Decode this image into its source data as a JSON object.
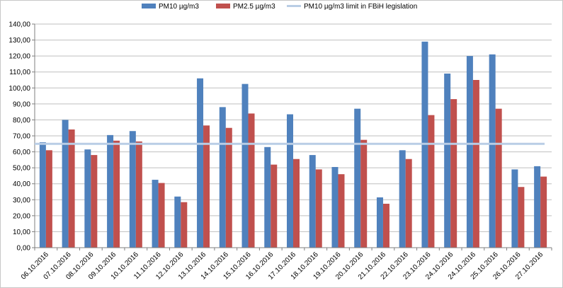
{
  "chart_data": {
    "type": "bar",
    "categories": [
      "06.10.2016",
      "07.10.2016",
      "08.10.2016",
      "09.10.2016",
      "10.10.2016",
      "11.10.2016",
      "12.10.2016",
      "13.10.2016",
      "14.10.2016",
      "15.10.2016",
      "16.10.2016",
      "17.10.2016",
      "18.10.2016",
      "19.10.2016",
      "20.10.2016",
      "21.10.2016",
      "22.10.2016",
      "23.10.2016",
      "24.10.2016",
      "24.10.2016",
      "25.10.2016",
      "26.10.2016",
      "27.10.2016"
    ],
    "series": [
      {
        "name": "PM10 µg/m3",
        "color": "#4f81bd",
        "values": [
          66,
          80,
          61.5,
          70.5,
          73,
          42.5,
          32,
          106,
          88,
          102.5,
          63,
          83.5,
          58,
          50.5,
          87,
          31.5,
          61,
          129,
          109,
          120,
          121,
          49,
          51
        ]
      },
      {
        "name": "PM2.5 µg/m3",
        "color": "#c0504d",
        "values": [
          61,
          74,
          58,
          67,
          66.5,
          40.5,
          28.5,
          76.5,
          75,
          84,
          52,
          55.5,
          49,
          46,
          67.5,
          27.5,
          55.5,
          83,
          93,
          105,
          87,
          38,
          44.5
        ]
      }
    ],
    "reference_line": {
      "name": "PM10 µg/m3 limit in FBiH legislation",
      "value": 65,
      "color": "#b9cde5"
    },
    "yticks": [
      "0,00",
      "10,00",
      "20,00",
      "30,00",
      "40,00",
      "50,00",
      "60,00",
      "70,00",
      "80,00",
      "90,00",
      "100,00",
      "110,00",
      "120,00",
      "130,00",
      "140,00"
    ],
    "ylim": [
      0,
      140
    ],
    "grid": true,
    "legend_position": "top-center",
    "title": "",
    "xlabel": "",
    "ylabel": ""
  }
}
